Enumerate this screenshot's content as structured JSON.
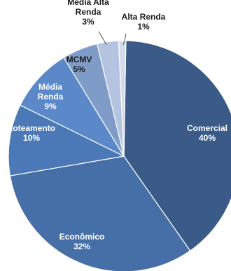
{
  "chart_data": {
    "type": "pie",
    "title": "",
    "slices": [
      {
        "name": "Comercial",
        "value": 40,
        "label_lines": [
          "Comercial",
          "40%"
        ],
        "color": "#3a5a88",
        "label_color": "#ffffff"
      },
      {
        "name": "Econômico",
        "value": 32,
        "label_lines": [
          "Econômico",
          "32%"
        ],
        "color": "#466ea7",
        "label_color": "#ffffff"
      },
      {
        "name": "Loteamento",
        "value": 10,
        "label_lines": [
          "Loteamento",
          "10%"
        ],
        "color": "#4b78b7",
        "label_color": "#ffffff"
      },
      {
        "name": "Média Renda",
        "value": 9,
        "label_lines": [
          "Média",
          "Renda",
          "9%"
        ],
        "color": "#5a88c8",
        "label_color": "#ffffff"
      },
      {
        "name": "MCMV",
        "value": 5,
        "label_lines": [
          "MCMV",
          "5%"
        ],
        "color": "#7f9cc9",
        "label_color": "#1a1a1a"
      },
      {
        "name": "Média Alta Renda",
        "value": 3,
        "label_lines": [
          "Média Alta",
          "Renda",
          "3%"
        ],
        "color": "#b4c4e0",
        "label_color": "#1a1a1a"
      },
      {
        "name": "Alta Renda",
        "value": 1,
        "label_lines": [
          "Alta Renda",
          "1%"
        ],
        "color": "#d3dbe9",
        "label_color": "#1a1a1a"
      }
    ]
  }
}
